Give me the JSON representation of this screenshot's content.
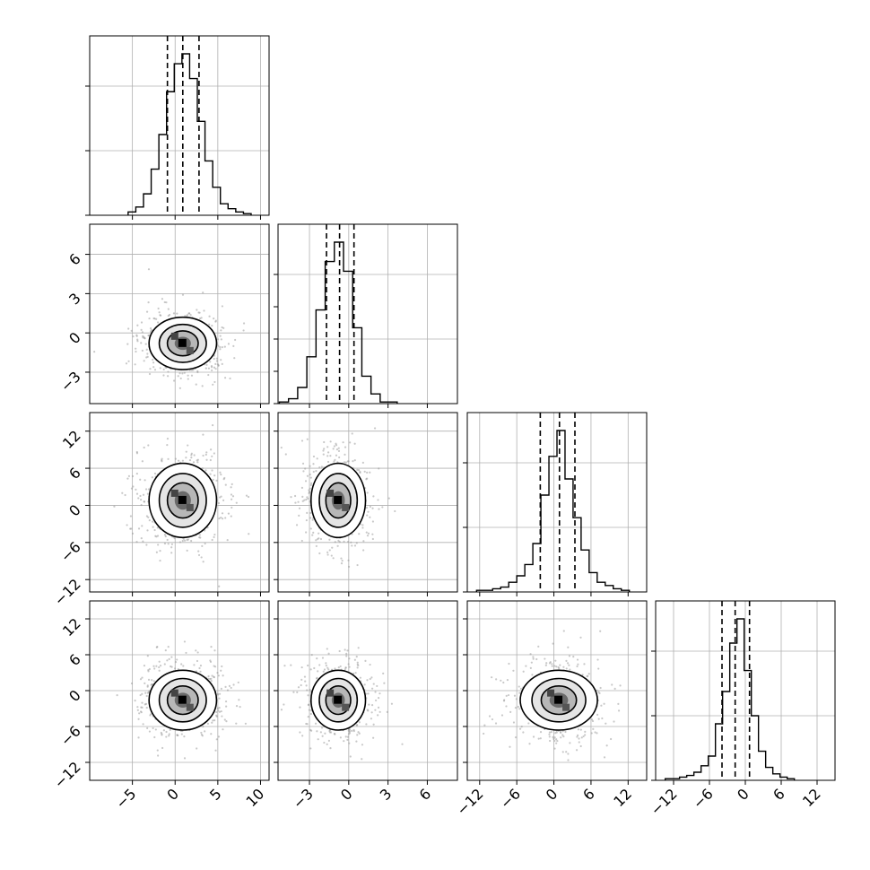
{
  "chart_data": {
    "type": "corner",
    "grid": true,
    "parameters": [
      {
        "range": [
          -10,
          11
        ],
        "ticks": [
          -5,
          0,
          5,
          10
        ],
        "tick_labels": [
          "−5",
          "0",
          "5",
          "10"
        ],
        "quantiles": [
          -0.9,
          0.9,
          2.8
        ],
        "histogram": {
          "bin_edges": [
            -5.5,
            -4.6,
            -3.7,
            -2.8,
            -1.9,
            -1.0,
            -0.1,
            0.8,
            1.7,
            2.6,
            3.5,
            4.4,
            5.3,
            6.2,
            7.1,
            8.0,
            8.9
          ],
          "counts": [
            2,
            5,
            13,
            28,
            49,
            75,
            92,
            98,
            83,
            57,
            33,
            17,
            7,
            4,
            2,
            1
          ]
        },
        "center": 0.9,
        "sigma": 1.9
      },
      {
        "range": [
          -5.4,
          8.3
        ],
        "ticks": [
          -3,
          0,
          3,
          6
        ],
        "tick_labels": [
          "−3",
          "0",
          "3",
          "6"
        ],
        "quantiles": [
          -1.7,
          -0.7,
          0.4
        ],
        "histogram": {
          "bin_edges": [
            -5.3,
            -4.6,
            -3.9,
            -3.2,
            -2.5,
            -1.8,
            -1.1,
            -0.4,
            0.3,
            1.0,
            1.7,
            2.4,
            3.0,
            3.7
          ],
          "counts": [
            1,
            3,
            10,
            29,
            58,
            88,
            100,
            82,
            47,
            17,
            6,
            1,
            1
          ]
        },
        "center": -0.8,
        "sigma": 1.0
      },
      {
        "range": [
          -14,
          15
        ],
        "ticks": [
          -12,
          -6,
          0,
          6,
          12
        ],
        "tick_labels": [
          "−12",
          "−6",
          "0",
          "6",
          "12"
        ],
        "quantiles": [
          -2.2,
          0.9,
          3.4
        ],
        "histogram": {
          "bin_edges": [
            -12.5,
            -11.2,
            -9.9,
            -8.6,
            -7.3,
            -6.0,
            -4.7,
            -3.4,
            -2.1,
            -0.8,
            0.5,
            1.8,
            3.1,
            4.4,
            5.7,
            7.0,
            8.3,
            9.6,
            10.9,
            12.2
          ],
          "counts": [
            1,
            1,
            2,
            3,
            6,
            10,
            17,
            30,
            60,
            84,
            100,
            70,
            46,
            26,
            12,
            6,
            4,
            2,
            1
          ]
        },
        "center": 0.8,
        "sigma": 3.0
      },
      {
        "range": [
          -15,
          15
        ],
        "ticks": [
          -12,
          -6,
          0,
          6,
          12
        ],
        "tick_labels": [
          "−12",
          "−6",
          "0",
          "6",
          "12"
        ],
        "quantiles": [
          -3.9,
          -1.7,
          0.7
        ],
        "histogram": {
          "bin_edges": [
            -13.4,
            -12.2,
            -11.0,
            -9.8,
            -8.6,
            -7.4,
            -6.2,
            -5.0,
            -3.8,
            -2.6,
            -1.4,
            -0.2,
            1.0,
            2.2,
            3.4,
            4.6,
            5.8,
            7.0,
            8.2
          ],
          "counts": [
            1,
            1,
            2,
            3,
            5,
            9,
            15,
            35,
            55,
            85,
            100,
            68,
            40,
            18,
            8,
            4,
            2,
            1
          ]
        },
        "center": -1.6,
        "sigma": 2.5
      }
    ]
  }
}
